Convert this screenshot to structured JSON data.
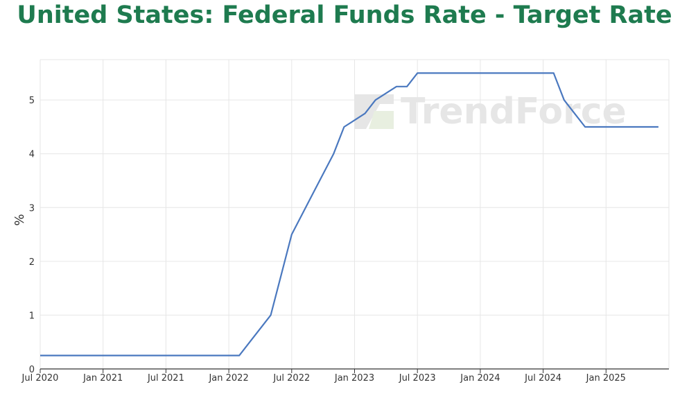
{
  "chart_data": {
    "type": "line",
    "title": "United States: Federal Funds Rate - Target Rate",
    "ylabel": "%",
    "xlabel": "",
    "watermark": "TrendForce",
    "colors": {
      "title": "#1e7b4f",
      "line": "#4a78bf",
      "grid": "#e6e6e6",
      "axis": "#333333"
    },
    "grid": true,
    "legend": "none",
    "ylim": [
      0,
      5.75
    ],
    "yticks": [
      0,
      1,
      2,
      3,
      4,
      5
    ],
    "xlim": [
      "2020-07",
      "2025-07"
    ],
    "xticks": [
      "Jul 2020",
      "Jan 2021",
      "Jul 2021",
      "Jan 2022",
      "Jul 2022",
      "Jan 2023",
      "Jul 2023",
      "Jan 2024",
      "Jul 2024",
      "Jan 2025"
    ],
    "xtick_dates": [
      "2020-07",
      "2021-01",
      "2021-07",
      "2022-01",
      "2022-07",
      "2023-01",
      "2023-07",
      "2024-01",
      "2024-07",
      "2025-01"
    ],
    "series": [
      {
        "name": "",
        "x": [
          "2020-07",
          "2022-02",
          "2022-03",
          "2022-05",
          "2022-06",
          "2022-07",
          "2022-09",
          "2022-11",
          "2022-12",
          "2023-02",
          "2023-03",
          "2023-05",
          "2023-06",
          "2023-07",
          "2024-07",
          "2024-08",
          "2024-09",
          "2024-10",
          "2024-11",
          "2024-12",
          "2025-06"
        ],
        "y": [
          0.25,
          0.25,
          0.5,
          1.0,
          1.75,
          2.5,
          3.25,
          4.0,
          4.5,
          4.75,
          5.0,
          5.25,
          5.25,
          5.5,
          5.5,
          5.5,
          5.0,
          4.75,
          4.5,
          4.5,
          4.5
        ]
      }
    ]
  }
}
